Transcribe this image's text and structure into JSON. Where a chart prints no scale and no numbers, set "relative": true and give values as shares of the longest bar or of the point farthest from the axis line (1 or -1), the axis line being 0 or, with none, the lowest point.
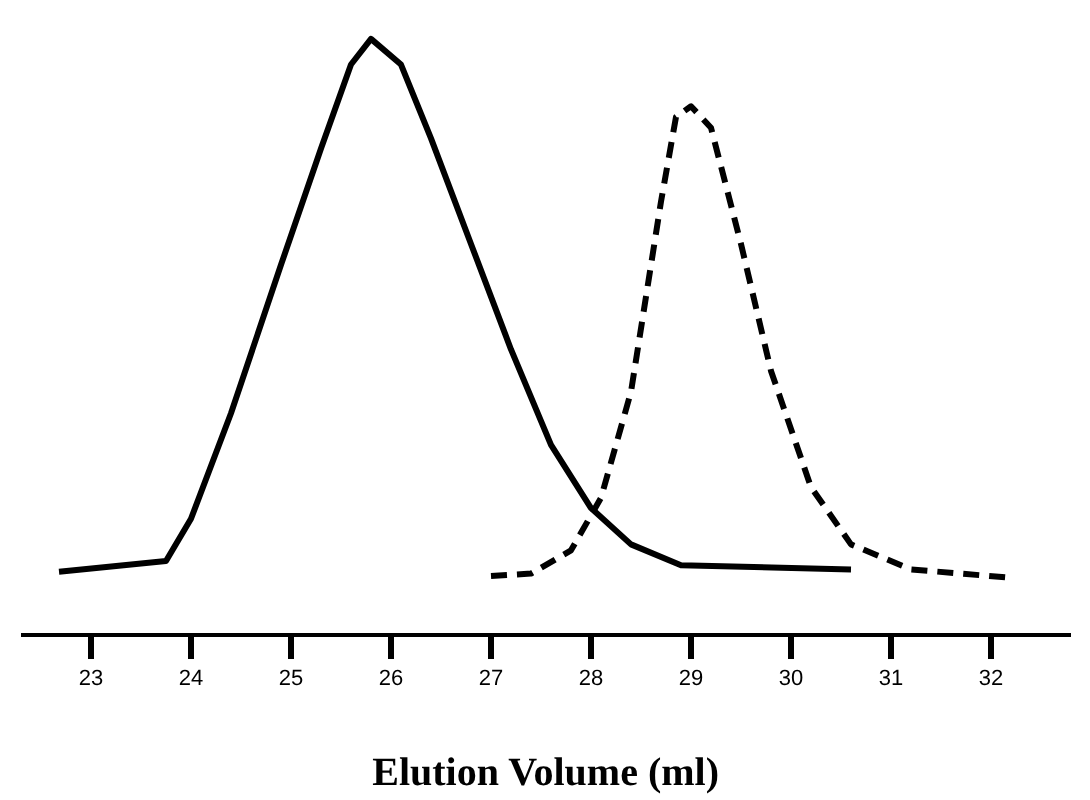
{
  "chart_data": {
    "type": "line",
    "relative": true,
    "xlabel": "Elution Volume (ml)",
    "xlim": [
      22.3,
      32.8
    ],
    "xticks": [
      23,
      24,
      25,
      26,
      27,
      28,
      29,
      30,
      31,
      32
    ],
    "grid": false,
    "marker": "none",
    "tick_labels": "x",
    "series": [
      {
        "color": "#000000",
        "line_style": "solid",
        "x": [
          22.68,
          23.75,
          24.0,
          24.4,
          24.9,
          25.3,
          25.6,
          25.8,
          26.1,
          26.4,
          26.8,
          27.2,
          27.6,
          28.0,
          28.4,
          28.9,
          30.6
        ],
        "values": [
          0.106,
          0.124,
          0.195,
          0.372,
          0.621,
          0.816,
          0.957,
          1,
          0.957,
          0.833,
          0.656,
          0.479,
          0.319,
          0.213,
          0.152,
          0.117,
          0.11
        ]
      },
      {
        "color": "#000000",
        "line_style": "dashed",
        "x": [
          27.0,
          27.4,
          27.8,
          28.1,
          28.4,
          28.7,
          28.85,
          29.0,
          29.2,
          29.5,
          29.8,
          30.2,
          30.6,
          31.2,
          32.2
        ],
        "values": [
          0.099,
          0.103,
          0.142,
          0.23,
          0.408,
          0.727,
          0.869,
          0.887,
          0.851,
          0.656,
          0.443,
          0.248,
          0.152,
          0.11,
          0.096
        ]
      }
    ]
  }
}
